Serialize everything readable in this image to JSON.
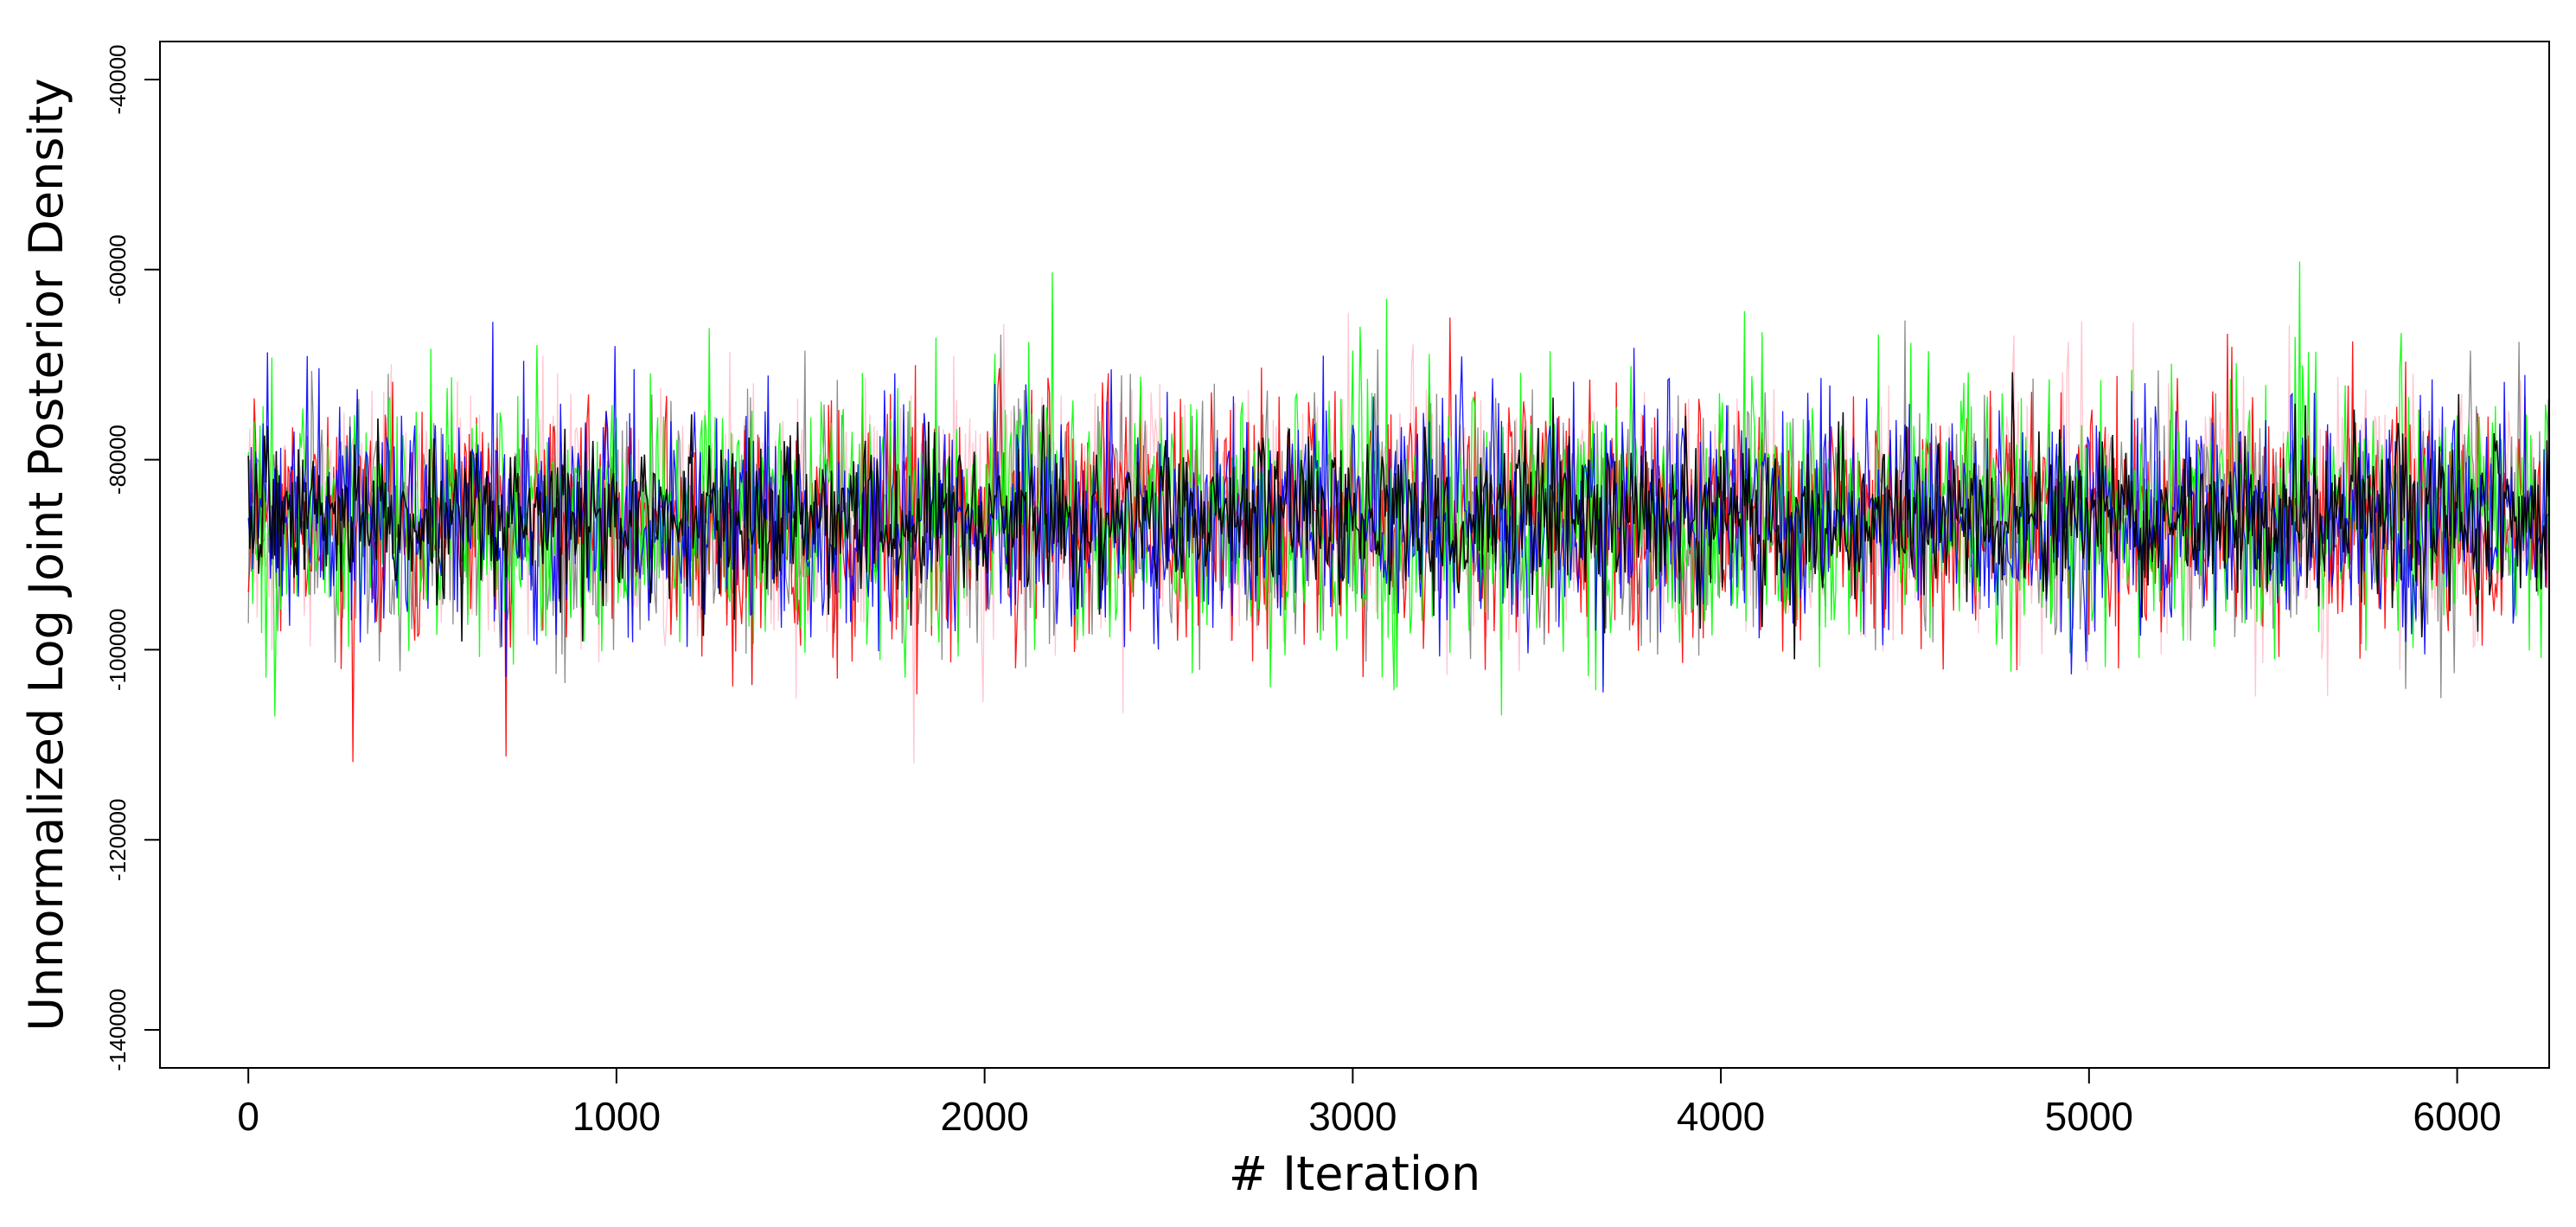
{
  "chart_data": {
    "type": "line",
    "title": "",
    "xlabel": "# Iteration",
    "ylabel": "Unnormalized Log Joint Posterior Density",
    "xlim": [
      -240,
      6250
    ],
    "ylim": [
      -144000,
      -36000
    ],
    "x_ticks": [
      0,
      1000,
      2000,
      3000,
      4000,
      5000,
      6000
    ],
    "x_tick_labels": [
      "0",
      "1000",
      "2000",
      "3000",
      "4000",
      "5000",
      "6000"
    ],
    "y_ticks": [
      -40000,
      -60000,
      -80000,
      -100000,
      -120000,
      -140000
    ],
    "y_tick_labels": [
      "-40000",
      "-60000",
      "-80000",
      "-100000",
      "-120000",
      "-140000"
    ],
    "grid": false,
    "legend": "none",
    "n_iterations": 6250,
    "series": [
      {
        "color": "#ffc0cb",
        "center": -86000,
        "spread": 6500
      },
      {
        "color": "#808080",
        "center": -86000,
        "spread": 6200
      },
      {
        "color": "#ff0000",
        "center": -86000,
        "spread": 6300
      },
      {
        "color": "#00ff00",
        "center": -86000,
        "spread": 6800
      },
      {
        "color": "#0000ff",
        "center": -86000,
        "spread": 6000
      },
      {
        "color": "#000000",
        "center": -86000,
        "spread": 4200
      }
    ],
    "extremes": {
      "max": -58000,
      "min": -118000
    }
  }
}
